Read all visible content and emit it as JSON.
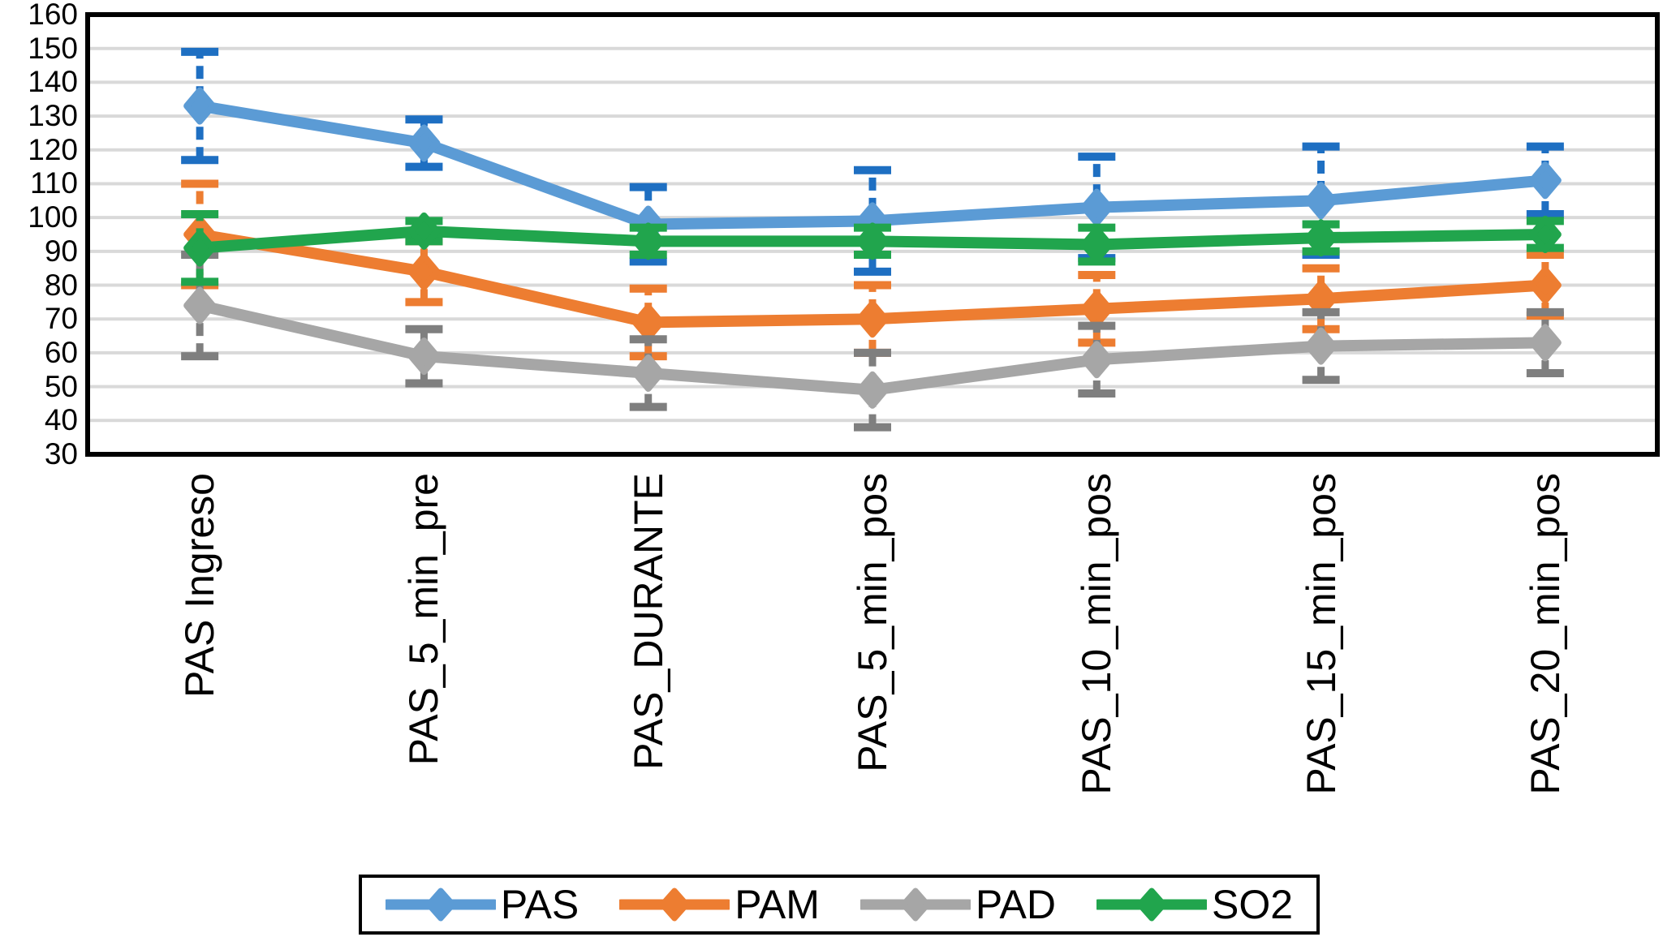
{
  "chart_data": {
    "type": "line",
    "title": "",
    "xlabel": "",
    "ylabel": "",
    "ylim": [
      30,
      160
    ],
    "y_ticks": [
      160,
      150,
      140,
      130,
      120,
      110,
      100,
      90,
      80,
      70,
      60,
      50,
      40,
      30
    ],
    "grid": "horizontal",
    "gridline_color": "#D9D9D9",
    "frame_color": "#000000",
    "background_color": "#FFFFFF",
    "legend_position": "bottom-center",
    "marker": "diamond",
    "error_bars": true,
    "categories": [
      "PAS Ingreso",
      "PAS_5_min_pre",
      "PAS_DURANTE",
      "PAS_5_min_pos",
      "PAS_10_min_pos",
      "PAS_15_min_pos",
      "PAS_20_min_pos"
    ],
    "series": [
      {
        "name": "PAS",
        "color": "#5B9BD5",
        "error_color": "#1E6FC2",
        "values": [
          133,
          122,
          98,
          99,
          103,
          105,
          111
        ],
        "errors": [
          16,
          7,
          11,
          15,
          15,
          16,
          10
        ]
      },
      {
        "name": "PAM",
        "color": "#ED7D31",
        "error_color": "#ED7D31",
        "values": [
          95,
          84,
          69,
          70,
          73,
          76,
          80
        ],
        "errors": [
          15,
          9,
          10,
          10,
          10,
          9,
          9
        ]
      },
      {
        "name": "PAD",
        "color": "#A6A6A6",
        "error_color": "#7F7F7F",
        "values": [
          74,
          59,
          54,
          49,
          58,
          62,
          63
        ],
        "errors": [
          15,
          8,
          10,
          11,
          10,
          10,
          9
        ]
      },
      {
        "name": "SO2",
        "color": "#21A54D",
        "error_color": "#21A54D",
        "values": [
          91,
          96,
          93,
          93,
          92,
          94,
          95
        ],
        "errors": [
          10,
          3,
          4,
          4,
          5,
          4,
          4
        ]
      }
    ]
  }
}
